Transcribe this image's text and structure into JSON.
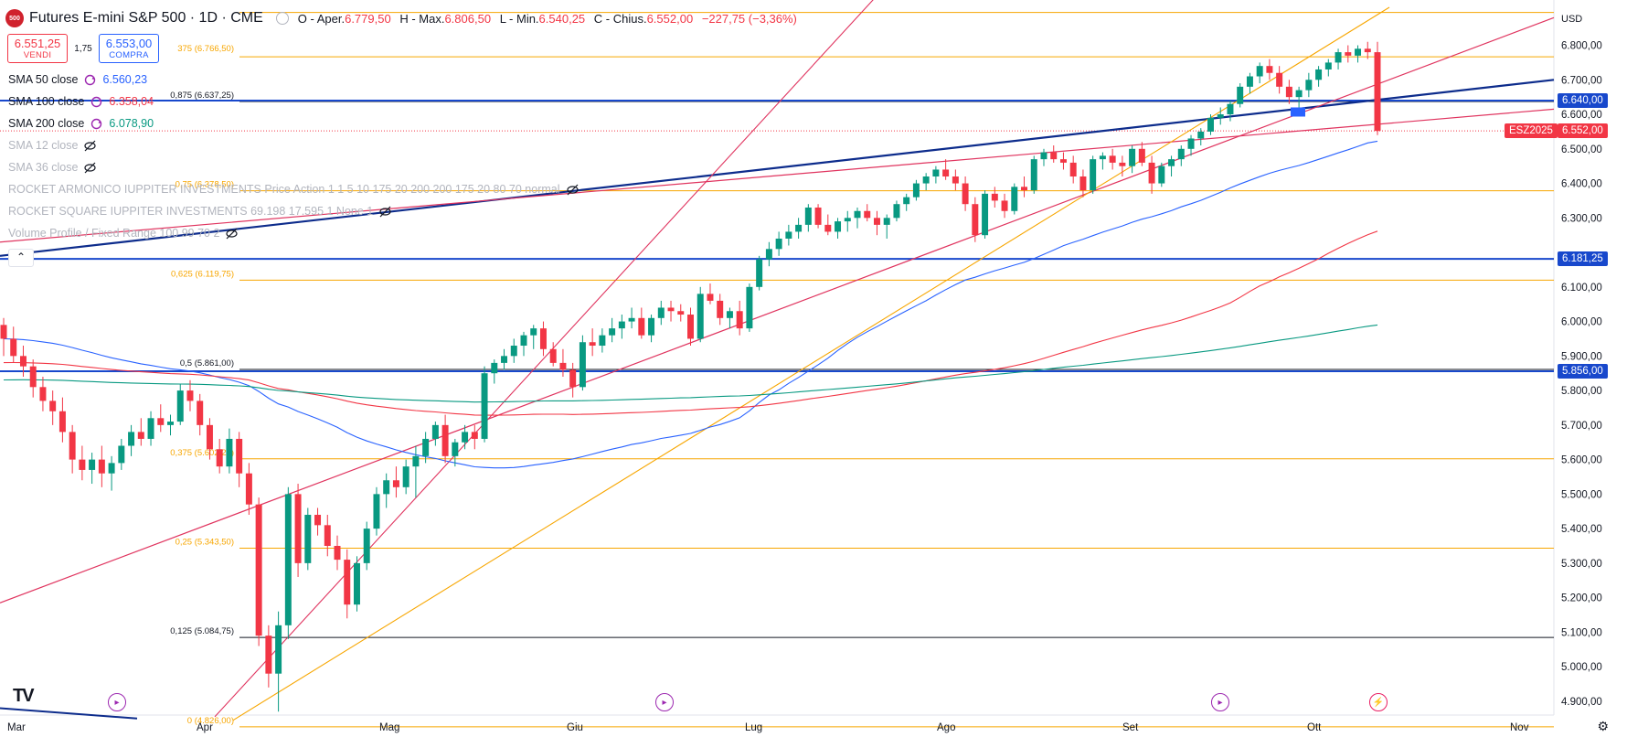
{
  "header": {
    "logo": "500",
    "title": "Futures E-mini S&P 500 · 1D · CME",
    "open_label": "O - Aper.",
    "open": "6.779,50",
    "high_label": "H - Max.",
    "high": "6.806,50",
    "low_label": "L - Min.",
    "low": "6.540,25",
    "close_label": "C - Chius.",
    "close": "6.552,00",
    "change": "−227,75 (−3,36%)"
  },
  "trade": {
    "sell_price": "6.551,25",
    "sell_label": "VENDI",
    "spread": "1,75",
    "buy_price": "6.553,00",
    "buy_label": "COMPRA"
  },
  "indicators": [
    {
      "name": "SMA 50 close",
      "value": "6.560,23",
      "color": "#2962ff",
      "icon": "sync-icon"
    },
    {
      "name": "SMA 100 close",
      "value": "6.358,04",
      "color": "#f23645",
      "icon": "sync-icon"
    },
    {
      "name": "SMA 200 close",
      "value": "6.078,90",
      "color": "#089981",
      "icon": "sync-icon"
    },
    {
      "name": "SMA 12 close",
      "value": "",
      "icon": "eye-off-icon"
    },
    {
      "name": "SMA 36 close",
      "value": "",
      "icon": "eye-off-icon"
    },
    {
      "name": "ROCKET ARMONICO IUPPITER INVESTMENTS Price Action 1 1 5 10 175 20 200 200 175 20 80 70 normal",
      "value": "",
      "icon": "eye-off-icon"
    },
    {
      "name": "ROCKET SQUARE IUPPITER INVESTMENTS 69.198 17.595 1 None 1",
      "value": "",
      "icon": "eye-off-icon"
    },
    {
      "name": "Volume Profile / Fixed Range 100 99 70 2",
      "value": "",
      "icon": "eye-off-icon"
    }
  ],
  "collapse_icon": "chevron-up-icon",
  "currency": "USD",
  "price_axis": [
    "6.800,00",
    "6.700,00",
    "6.600,00",
    "6.500,00",
    "6.400,00",
    "6.300,00",
    "6.100,00",
    "6.000,00",
    "5.900,00",
    "5.800,00",
    "5.700,00",
    "5.600,00",
    "5.500,00",
    "5.400,00",
    "5.300,00",
    "5.200,00",
    "5.100,00",
    "5.000,00",
    "4.900,00"
  ],
  "time_axis": [
    "Mar",
    "Apr",
    "Mag",
    "Giu",
    "Lug",
    "Ago",
    "Set",
    "Ott",
    "Nov"
  ],
  "price_labels": [
    {
      "text": "6.640,00",
      "bg": "#1848cc"
    },
    {
      "text": "6.552,00",
      "bg": "#f23645",
      "symbol": "ESZ2025"
    },
    {
      "text": "6.181,25",
      "bg": "#1848cc"
    },
    {
      "text": "5.856,00",
      "bg": "#1848cc"
    }
  ],
  "fib_levels": [
    {
      "label": "0,875 (6.637,25)",
      "color": "#131722"
    },
    {
      "label": "0,75 (6.378,50)",
      "color": "#f7a600"
    },
    {
      "label": "0,625 (6.119,75)",
      "color": "#f7a600"
    },
    {
      "label": "0,5 (5.861,00)",
      "color": "#131722"
    },
    {
      "label": "0,375 (5.602,25)",
      "color": "#f7a600"
    },
    {
      "label": "0,25 (5.343,50)",
      "color": "#f7a600"
    },
    {
      "label": "0,125 (5.084,75)",
      "color": "#131722"
    },
    {
      "label": "0 (4.826,00)",
      "color": "#f7a600"
    }
  ],
  "fib_top_label": "375 (6.766,50)",
  "logo_tv": "TV",
  "settings_icon": "gear-icon",
  "colors": {
    "up": "#089981",
    "down": "#f23645",
    "sma50": "#2962ff",
    "sma100": "#f23645",
    "sma200": "#089981"
  },
  "chart_data": {
    "type": "candlestick",
    "ylim": [
      4860,
      6910
    ],
    "candles": [
      [
        5990,
        6010,
        5900,
        5950
      ],
      [
        5950,
        5985,
        5880,
        5900
      ],
      [
        5900,
        5930,
        5840,
        5870
      ],
      [
        5870,
        5890,
        5780,
        5810
      ],
      [
        5810,
        5840,
        5740,
        5770
      ],
      [
        5770,
        5800,
        5700,
        5740
      ],
      [
        5740,
        5780,
        5650,
        5680
      ],
      [
        5680,
        5700,
        5560,
        5600
      ],
      [
        5600,
        5640,
        5540,
        5570
      ],
      [
        5570,
        5620,
        5530,
        5600
      ],
      [
        5600,
        5640,
        5520,
        5560
      ],
      [
        5560,
        5610,
        5510,
        5590
      ],
      [
        5590,
        5660,
        5570,
        5640
      ],
      [
        5640,
        5700,
        5610,
        5680
      ],
      [
        5680,
        5720,
        5640,
        5660
      ],
      [
        5660,
        5740,
        5640,
        5720
      ],
      [
        5720,
        5760,
        5680,
        5700
      ],
      [
        5700,
        5730,
        5670,
        5710
      ],
      [
        5710,
        5820,
        5700,
        5800
      ],
      [
        5800,
        5830,
        5740,
        5770
      ],
      [
        5770,
        5790,
        5670,
        5700
      ],
      [
        5700,
        5720,
        5600,
        5630
      ],
      [
        5630,
        5660,
        5560,
        5580
      ],
      [
        5580,
        5690,
        5560,
        5660
      ],
      [
        5660,
        5680,
        5520,
        5560
      ],
      [
        5560,
        5590,
        5440,
        5470
      ],
      [
        5470,
        5490,
        5060,
        5090
      ],
      [
        5090,
        5120,
        4940,
        4980
      ],
      [
        4980,
        5160,
        4870,
        5120
      ],
      [
        5120,
        5520,
        5080,
        5500
      ],
      [
        5500,
        5530,
        5260,
        5300
      ],
      [
        5300,
        5460,
        5280,
        5440
      ],
      [
        5440,
        5460,
        5380,
        5410
      ],
      [
        5410,
        5440,
        5320,
        5350
      ],
      [
        5350,
        5380,
        5280,
        5310
      ],
      [
        5310,
        5340,
        5140,
        5180
      ],
      [
        5180,
        5320,
        5160,
        5300
      ],
      [
        5300,
        5420,
        5280,
        5400
      ],
      [
        5400,
        5520,
        5380,
        5500
      ],
      [
        5500,
        5560,
        5460,
        5540
      ],
      [
        5540,
        5580,
        5490,
        5520
      ],
      [
        5520,
        5600,
        5500,
        5580
      ],
      [
        5580,
        5640,
        5490,
        5610
      ],
      [
        5610,
        5680,
        5590,
        5660
      ],
      [
        5660,
        5710,
        5640,
        5700
      ],
      [
        5700,
        5730,
        5590,
        5610
      ],
      [
        5610,
        5660,
        5580,
        5650
      ],
      [
        5650,
        5700,
        5630,
        5680
      ],
      [
        5680,
        5700,
        5630,
        5660
      ],
      [
        5660,
        5870,
        5650,
        5850
      ],
      [
        5850,
        5890,
        5820,
        5880
      ],
      [
        5880,
        5920,
        5860,
        5900
      ],
      [
        5900,
        5950,
        5880,
        5930
      ],
      [
        5930,
        5970,
        5900,
        5960
      ],
      [
        5960,
        5990,
        5920,
        5980
      ],
      [
        5980,
        6000,
        5900,
        5920
      ],
      [
        5920,
        5940,
        5870,
        5880
      ],
      [
        5880,
        5920,
        5840,
        5860
      ],
      [
        5860,
        5880,
        5780,
        5810
      ],
      [
        5810,
        5960,
        5800,
        5940
      ],
      [
        5940,
        5980,
        5900,
        5930
      ],
      [
        5930,
        5980,
        5910,
        5960
      ],
      [
        5960,
        6010,
        5940,
        5980
      ],
      [
        5980,
        6020,
        5950,
        6000
      ],
      [
        6000,
        6040,
        5980,
        6010
      ],
      [
        6010,
        6040,
        5950,
        5960
      ],
      [
        5960,
        6020,
        5940,
        6010
      ],
      [
        6010,
        6060,
        5990,
        6040
      ],
      [
        6040,
        6060,
        6000,
        6030
      ],
      [
        6030,
        6050,
        6000,
        6020
      ],
      [
        6020,
        6040,
        5930,
        5950
      ],
      [
        5950,
        6100,
        5940,
        6080
      ],
      [
        6080,
        6110,
        6050,
        6060
      ],
      [
        6060,
        6080,
        5990,
        6010
      ],
      [
        6010,
        6040,
        5980,
        6030
      ],
      [
        6030,
        6060,
        5960,
        5980
      ],
      [
        5980,
        6110,
        5970,
        6100
      ],
      [
        6100,
        6190,
        6090,
        6180
      ],
      [
        6180,
        6230,
        6160,
        6210
      ],
      [
        6210,
        6260,
        6190,
        6240
      ],
      [
        6240,
        6280,
        6220,
        6260
      ],
      [
        6260,
        6300,
        6240,
        6280
      ],
      [
        6280,
        6340,
        6260,
        6330
      ],
      [
        6330,
        6340,
        6270,
        6280
      ],
      [
        6280,
        6310,
        6250,
        6260
      ],
      [
        6260,
        6300,
        6240,
        6290
      ],
      [
        6290,
        6320,
        6260,
        6300
      ],
      [
        6300,
        6330,
        6270,
        6320
      ],
      [
        6320,
        6340,
        6290,
        6300
      ],
      [
        6300,
        6320,
        6250,
        6280
      ],
      [
        6280,
        6310,
        6240,
        6300
      ],
      [
        6300,
        6350,
        6290,
        6340
      ],
      [
        6340,
        6370,
        6320,
        6360
      ],
      [
        6360,
        6410,
        6350,
        6400
      ],
      [
        6400,
        6430,
        6380,
        6420
      ],
      [
        6420,
        6450,
        6400,
        6440
      ],
      [
        6440,
        6470,
        6410,
        6420
      ],
      [
        6420,
        6440,
        6380,
        6400
      ],
      [
        6400,
        6420,
        6320,
        6340
      ],
      [
        6340,
        6360,
        6230,
        6250
      ],
      [
        6250,
        6380,
        6240,
        6370
      ],
      [
        6370,
        6390,
        6330,
        6350
      ],
      [
        6350,
        6370,
        6300,
        6320
      ],
      [
        6320,
        6400,
        6310,
        6390
      ],
      [
        6390,
        6420,
        6360,
        6380
      ],
      [
        6380,
        6480,
        6370,
        6470
      ],
      [
        6470,
        6500,
        6450,
        6490
      ],
      [
        6490,
        6510,
        6460,
        6470
      ],
      [
        6470,
        6490,
        6440,
        6460
      ],
      [
        6460,
        6480,
        6400,
        6420
      ],
      [
        6420,
        6440,
        6360,
        6380
      ],
      [
        6380,
        6480,
        6370,
        6470
      ],
      [
        6470,
        6490,
        6440,
        6480
      ],
      [
        6480,
        6500,
        6440,
        6460
      ],
      [
        6460,
        6480,
        6420,
        6450
      ],
      [
        6450,
        6510,
        6430,
        6500
      ],
      [
        6500,
        6520,
        6450,
        6460
      ],
      [
        6460,
        6480,
        6370,
        6400
      ],
      [
        6400,
        6460,
        6390,
        6450
      ],
      [
        6450,
        6480,
        6420,
        6470
      ],
      [
        6470,
        6510,
        6450,
        6500
      ],
      [
        6500,
        6540,
        6480,
        6530
      ],
      [
        6530,
        6560,
        6510,
        6550
      ],
      [
        6550,
        6600,
        6540,
        6590
      ],
      [
        6590,
        6620,
        6570,
        6600
      ],
      [
        6600,
        6640,
        6580,
        6630
      ],
      [
        6630,
        6690,
        6620,
        6680
      ],
      [
        6680,
        6720,
        6660,
        6710
      ],
      [
        6710,
        6750,
        6690,
        6740
      ],
      [
        6740,
        6760,
        6700,
        6720
      ],
      [
        6720,
        6740,
        6660,
        6680
      ],
      [
        6680,
        6700,
        6630,
        6650
      ],
      [
        6650,
        6680,
        6620,
        6670
      ],
      [
        6670,
        6720,
        6650,
        6700
      ],
      [
        6700,
        6740,
        6680,
        6730
      ],
      [
        6730,
        6760,
        6710,
        6750
      ],
      [
        6750,
        6790,
        6730,
        6780
      ],
      [
        6780,
        6800,
        6750,
        6770
      ],
      [
        6770,
        6800,
        6750,
        6790
      ],
      [
        6790,
        6810,
        6760,
        6780
      ],
      [
        6780,
        6810,
        6540,
        6552
      ]
    ]
  }
}
